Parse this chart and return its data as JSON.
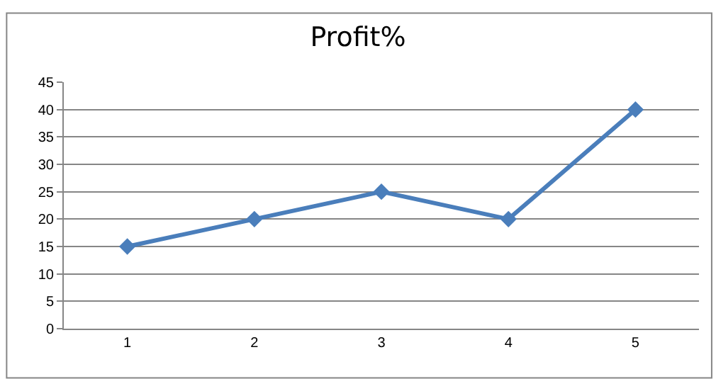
{
  "chart_data": {
    "type": "line",
    "title": "Profit%",
    "categories": [
      "1",
      "2",
      "3",
      "4",
      "5"
    ],
    "series": [
      {
        "color": "#4a7ebb",
        "values": [
          15,
          20,
          25,
          20,
          40
        ]
      }
    ],
    "ylim": [
      0,
      45
    ],
    "yticks": [
      0,
      5,
      10,
      15,
      20,
      25,
      30,
      35,
      40,
      45
    ],
    "grid": "y",
    "marker": "diamond",
    "line_style": "solid"
  }
}
